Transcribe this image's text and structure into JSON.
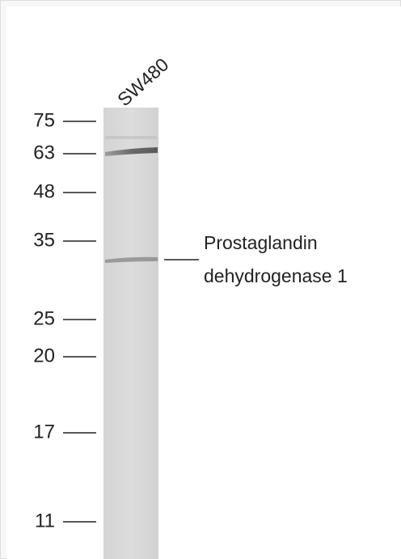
{
  "lane_label": "SW480",
  "markers": [
    75,
    63,
    48,
    35,
    25,
    20,
    17,
    11
  ],
  "band_label": {
    "lines": [
      "Prostaglandin",
      "dehydrogenase 1"
    ]
  }
}
